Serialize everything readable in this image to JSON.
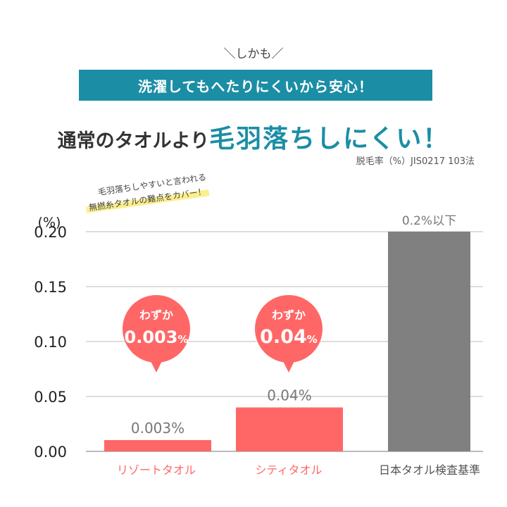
{
  "kicker": "＼しかも／",
  "banner": "洗濯してもへたりにくいから安心！",
  "headline": {
    "part1": "通常のタオルより",
    "part2": "毛羽落ちしにくい！"
  },
  "method_note": "脱毛率（%）JIS0217 103法",
  "handwritten_note": {
    "line1": "毛羽落ちしやすいと言われる",
    "line2": "無撚糸タオルの難点をカバー！"
  },
  "colors": {
    "accent": "#1b8ea5",
    "coral": "#ff6767",
    "gray": "#808080",
    "highlight": "#fbef8f"
  },
  "chart_data": {
    "type": "bar",
    "ylabel": "(%)",
    "ylim": [
      0,
      0.2
    ],
    "yticks": [
      "0.00",
      "0.05",
      "0.10",
      "0.15",
      "0.20"
    ],
    "grid": true,
    "categories": [
      "リゾートタオル",
      "シティタオル",
      "日本タオル検査基準"
    ],
    "values": [
      0.003,
      0.04,
      0.2
    ],
    "data_labels": [
      "0.003%",
      "0.04%",
      "0.2%以下"
    ],
    "bar_colors": [
      "#ff6767",
      "#ff6767",
      "#808080"
    ],
    "callouts": [
      {
        "line1": "わずか",
        "value": "0.003",
        "unit": "%"
      },
      {
        "line1": "わずか",
        "value": "0.04",
        "unit": "%"
      }
    ]
  }
}
